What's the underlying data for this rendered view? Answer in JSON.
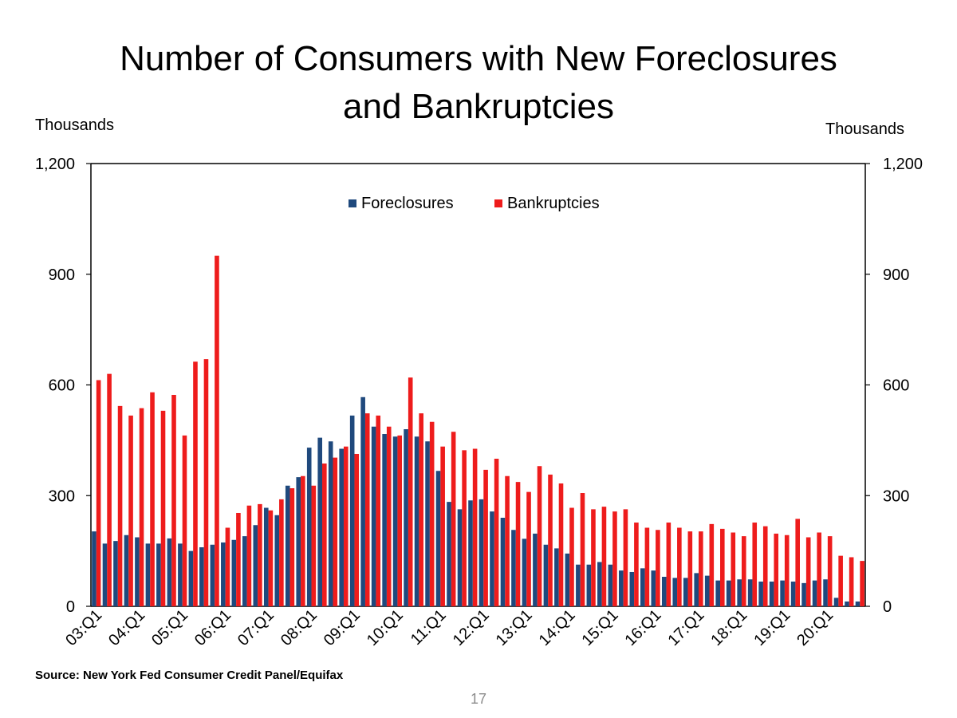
{
  "slide": {
    "title_line1": "Number of Consumers with New Foreclosures",
    "title_line2": "and Bankruptcies",
    "unit_left": "Thousands",
    "unit_right": "Thousands",
    "source": "Source: New York Fed Consumer Credit Panel/Equifax",
    "page_number": "17"
  },
  "colors": {
    "foreclosures": "#1F497D",
    "bankruptcies": "#EE1C1C",
    "axis": "#000000"
  },
  "chart_data": {
    "type": "bar",
    "ylim": [
      0,
      1200
    ],
    "yticks": [
      0,
      300,
      600,
      900,
      1200
    ],
    "ytick_labels": [
      "0",
      "300",
      "600",
      "900",
      "1,200"
    ],
    "grid": false,
    "legend_position": "top-center",
    "categories": [
      "03:Q1",
      "03:Q2",
      "03:Q3",
      "03:Q4",
      "04:Q1",
      "04:Q2",
      "04:Q3",
      "04:Q4",
      "05:Q1",
      "05:Q2",
      "05:Q3",
      "05:Q4",
      "06:Q1",
      "06:Q2",
      "06:Q3",
      "06:Q4",
      "07:Q1",
      "07:Q2",
      "07:Q3",
      "07:Q4",
      "08:Q1",
      "08:Q2",
      "08:Q3",
      "08:Q4",
      "09:Q1",
      "09:Q2",
      "09:Q3",
      "09:Q4",
      "10:Q1",
      "10:Q2",
      "10:Q3",
      "10:Q4",
      "11:Q1",
      "11:Q2",
      "11:Q3",
      "11:Q4",
      "12:Q1",
      "12:Q2",
      "12:Q3",
      "12:Q4",
      "13:Q1",
      "13:Q2",
      "13:Q3",
      "13:Q4",
      "14:Q1",
      "14:Q2",
      "14:Q3",
      "14:Q4",
      "15:Q1",
      "15:Q2",
      "15:Q3",
      "15:Q4",
      "16:Q1",
      "16:Q2",
      "16:Q3",
      "16:Q4",
      "17:Q1",
      "17:Q2",
      "17:Q3",
      "17:Q4",
      "18:Q1",
      "18:Q2",
      "18:Q3",
      "18:Q4",
      "19:Q1",
      "19:Q2",
      "19:Q3",
      "19:Q4",
      "20:Q1",
      "20:Q2",
      "20:Q3",
      "20:Q4"
    ],
    "xtick_labels": [
      "03:Q1",
      "04:Q1",
      "05:Q1",
      "06:Q1",
      "07:Q1",
      "08:Q1",
      "09:Q1",
      "10:Q1",
      "11:Q1",
      "12:Q1",
      "13:Q1",
      "14:Q1",
      "15:Q1",
      "16:Q1",
      "17:Q1",
      "18:Q1",
      "19:Q1",
      "20:Q1"
    ],
    "series": [
      {
        "name": "Foreclosures",
        "values": [
          203,
          170,
          177,
          193,
          187,
          170,
          170,
          184,
          170,
          150,
          160,
          167,
          173,
          180,
          190,
          220,
          267,
          247,
          327,
          350,
          430,
          457,
          447,
          427,
          517,
          567,
          487,
          467,
          460,
          480,
          460,
          447,
          367,
          283,
          263,
          287,
          290,
          257,
          240,
          207,
          183,
          197,
          167,
          157,
          143,
          113,
          113,
          120,
          113,
          97,
          93,
          103,
          97,
          80,
          77,
          77,
          90,
          83,
          70,
          70,
          73,
          73,
          67,
          67,
          70,
          67,
          63,
          70,
          73,
          23,
          13,
          13
        ]
      },
      {
        "name": "Bankruptcies",
        "values": [
          613,
          630,
          543,
          517,
          537,
          580,
          530,
          573,
          463,
          663,
          670,
          950,
          213,
          253,
          273,
          277,
          260,
          290,
          320,
          353,
          327,
          387,
          403,
          433,
          413,
          523,
          517,
          487,
          463,
          620,
          523,
          500,
          433,
          473,
          423,
          427,
          370,
          400,
          353,
          337,
          310,
          380,
          357,
          333,
          267,
          307,
          263,
          270,
          257,
          263,
          227,
          213,
          207,
          227,
          213,
          203,
          203,
          223,
          210,
          200,
          190,
          227,
          217,
          197,
          193,
          237,
          187,
          200,
          190,
          137,
          133,
          123
        ]
      }
    ]
  }
}
